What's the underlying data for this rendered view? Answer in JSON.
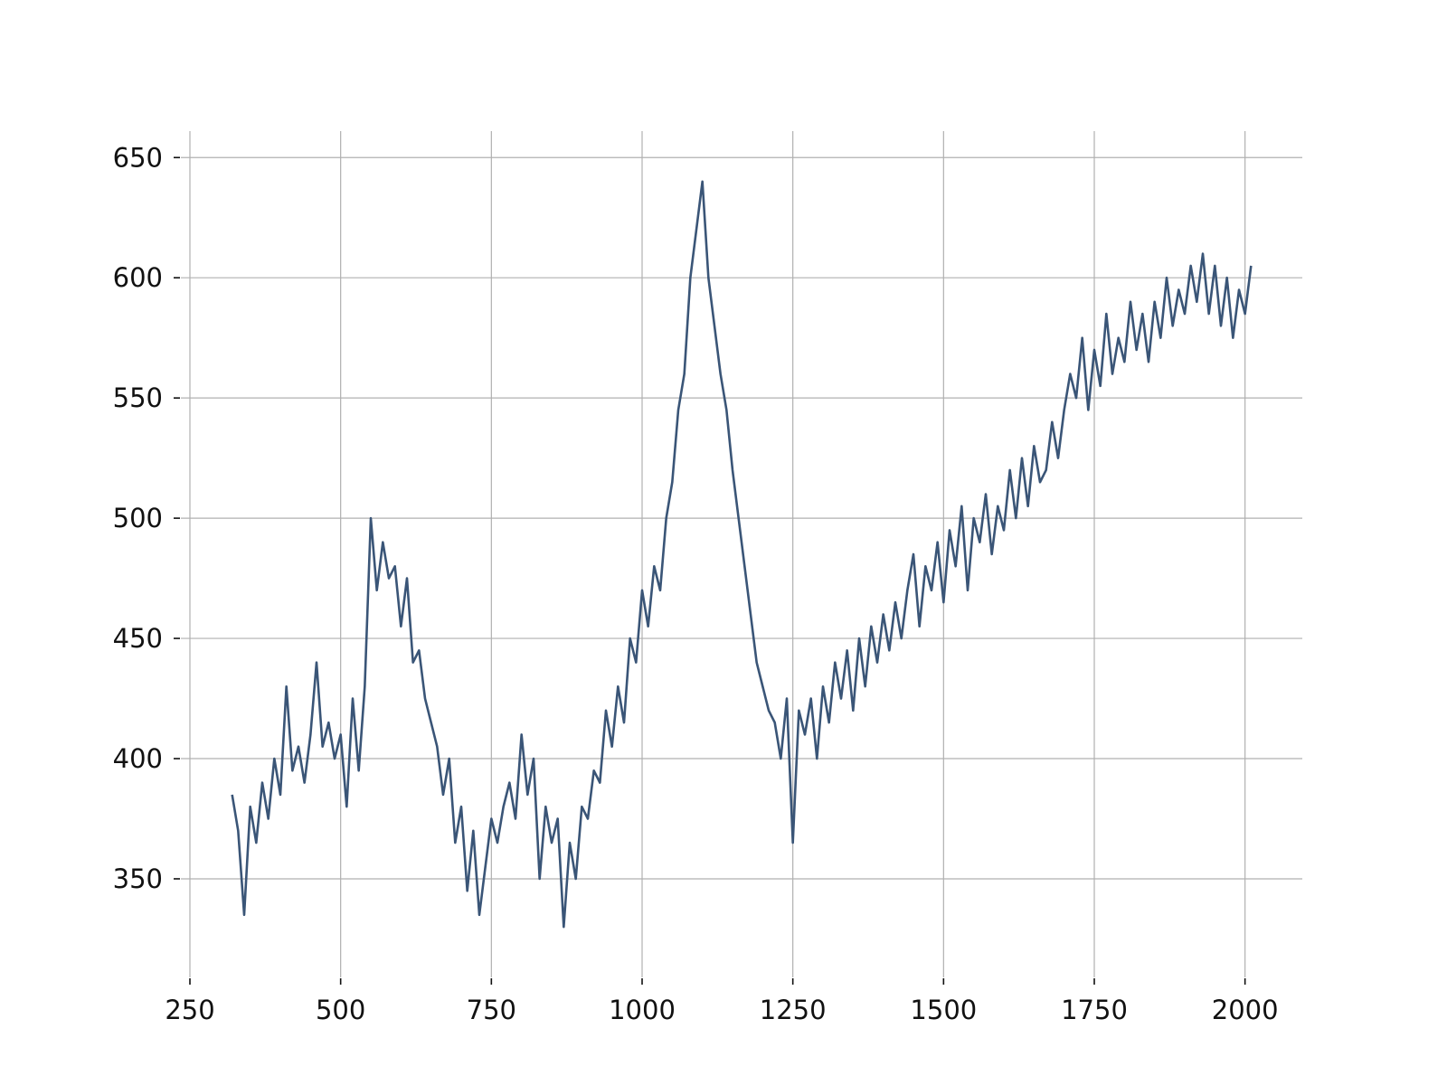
{
  "chart_data": {
    "type": "line",
    "x": [
      320,
      330,
      340,
      350,
      360,
      370,
      380,
      390,
      400,
      410,
      420,
      430,
      440,
      450,
      460,
      470,
      480,
      490,
      500,
      510,
      520,
      530,
      540,
      550,
      560,
      570,
      580,
      590,
      600,
      610,
      620,
      630,
      640,
      650,
      660,
      670,
      680,
      690,
      700,
      710,
      720,
      730,
      740,
      750,
      760,
      770,
      780,
      790,
      800,
      810,
      820,
      830,
      840,
      850,
      860,
      870,
      880,
      890,
      900,
      910,
      920,
      930,
      940,
      950,
      960,
      970,
      980,
      990,
      1000,
      1010,
      1020,
      1030,
      1040,
      1050,
      1060,
      1070,
      1080,
      1090,
      1100,
      1110,
      1120,
      1130,
      1140,
      1150,
      1160,
      1170,
      1180,
      1190,
      1200,
      1210,
      1220,
      1230,
      1240,
      1250,
      1260,
      1270,
      1280,
      1290,
      1300,
      1310,
      1320,
      1330,
      1340,
      1350,
      1360,
      1370,
      1380,
      1390,
      1400,
      1410,
      1420,
      1430,
      1440,
      1450,
      1460,
      1470,
      1480,
      1490,
      1500,
      1510,
      1520,
      1530,
      1540,
      1550,
      1560,
      1570,
      1580,
      1590,
      1600,
      1610,
      1620,
      1630,
      1640,
      1650,
      1660,
      1670,
      1680,
      1690,
      1700,
      1710,
      1720,
      1730,
      1740,
      1750,
      1760,
      1770,
      1780,
      1790,
      1800,
      1810,
      1820,
      1830,
      1840,
      1850,
      1860,
      1870,
      1880,
      1890,
      1900,
      1910,
      1920,
      1930,
      1940,
      1950,
      1960,
      1970,
      1980,
      1990,
      2000,
      2010
    ],
    "series": [
      {
        "color": "#3a5577",
        "values": [
          385,
          370,
          335,
          380,
          365,
          390,
          375,
          400,
          385,
          430,
          395,
          405,
          390,
          410,
          440,
          405,
          415,
          400,
          410,
          380,
          425,
          395,
          430,
          500,
          470,
          490,
          475,
          480,
          455,
          475,
          440,
          445,
          425,
          415,
          405,
          385,
          400,
          365,
          380,
          345,
          370,
          335,
          355,
          375,
          365,
          380,
          390,
          375,
          410,
          385,
          400,
          350,
          380,
          365,
          375,
          330,
          365,
          350,
          380,
          375,
          395,
          390,
          420,
          405,
          430,
          415,
          450,
          440,
          470,
          455,
          480,
          470,
          500,
          515,
          545,
          560,
          600,
          620,
          640,
          600,
          580,
          560,
          545,
          520,
          500,
          480,
          460,
          440,
          430,
          420,
          415,
          400,
          425,
          365,
          420,
          410,
          425,
          400,
          430,
          415,
          440,
          425,
          445,
          420,
          450,
          430,
          455,
          440,
          460,
          445,
          465,
          450,
          470,
          485,
          455,
          480,
          470,
          490,
          465,
          495,
          480,
          505,
          470,
          500,
          490,
          510,
          485,
          505,
          495,
          520,
          500,
          525,
          505,
          530,
          515,
          520,
          540,
          525,
          545,
          560,
          550,
          575,
          545,
          570,
          555,
          585,
          560,
          575,
          565,
          590,
          570,
          585,
          565,
          590,
          575,
          600,
          580,
          595,
          585,
          605,
          590,
          610,
          585,
          605,
          580,
          600,
          575,
          595,
          585,
          605
        ]
      }
    ],
    "xlim": [
      235,
      2095
    ],
    "ylim": [
      309,
      661
    ],
    "xticks": [
      250,
      500,
      750,
      1000,
      1250,
      1500,
      1750,
      2000
    ],
    "yticks": [
      350,
      400,
      450,
      500,
      550,
      600,
      650
    ],
    "grid": true
  }
}
